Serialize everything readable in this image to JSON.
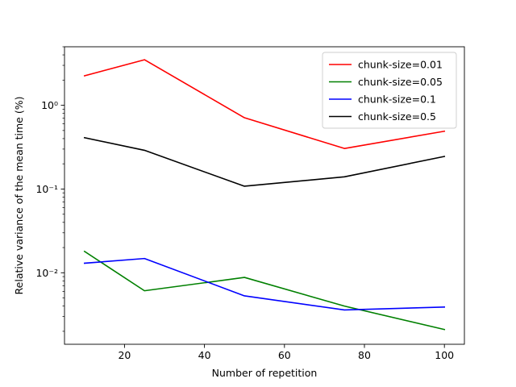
{
  "chart_data": {
    "type": "line",
    "title": "",
    "xlabel": "Number of repetition",
    "ylabel": "Relative variance of the mean time (%)",
    "x": [
      10,
      25,
      50,
      75,
      100
    ],
    "xlim": [
      5,
      105
    ],
    "ylim": [
      0.0014,
      5.0
    ],
    "yscale": "log",
    "grid": false,
    "legend_position": "top-right",
    "x_ticks": [
      20,
      40,
      60,
      80,
      100
    ],
    "x_tick_labels": [
      "20",
      "40",
      "60",
      "80",
      "100"
    ],
    "y_ticks": [
      0.01,
      0.1,
      1
    ],
    "y_tick_labels": [
      "10⁻²",
      "10⁻¹",
      "10⁰"
    ],
    "series": [
      {
        "name": "chunk-size=0.01",
        "color": "#ff0000",
        "values": [
          2.25,
          3.5,
          0.71,
          0.305,
          0.49
        ]
      },
      {
        "name": "chunk-size=0.05",
        "color": "#008000",
        "values": [
          0.018,
          0.0061,
          0.0088,
          0.004,
          0.0021
        ]
      },
      {
        "name": "chunk-size=0.1",
        "color": "#0000ff",
        "values": [
          0.013,
          0.0148,
          0.0053,
          0.0036,
          0.0039
        ]
      },
      {
        "name": "chunk-size=0.5",
        "color": "#000000",
        "values": [
          0.41,
          0.29,
          0.108,
          0.14,
          0.245
        ]
      }
    ]
  }
}
